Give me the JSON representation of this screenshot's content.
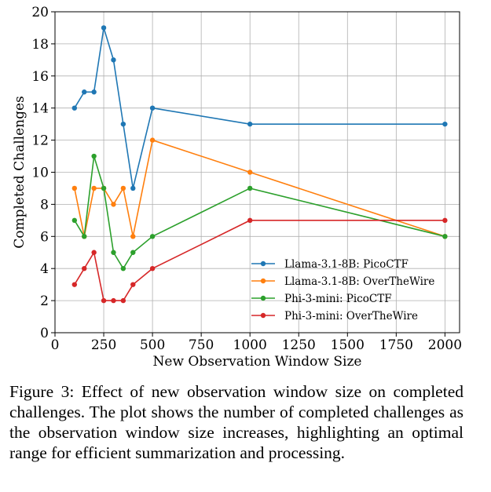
{
  "chart_data": {
    "type": "line",
    "title": "",
    "xlabel": "New Observation Window Size",
    "ylabel": "Completed Challenges",
    "xlim": [
      0,
      2075
    ],
    "ylim": [
      0,
      20
    ],
    "xticks": [
      0,
      250,
      500,
      750,
      1000,
      1250,
      1500,
      1750,
      2000
    ],
    "yticks": [
      0,
      2,
      4,
      6,
      8,
      10,
      12,
      14,
      16,
      18,
      20
    ],
    "grid": true,
    "legend_position": "lower-right",
    "x": [
      100,
      150,
      200,
      250,
      300,
      350,
      400,
      500,
      1000,
      2000
    ],
    "series": [
      {
        "name": "Llama-3.1-8B: PicoCTF",
        "color": "#1f77b4",
        "values": [
          14,
          15,
          15,
          19,
          17,
          13,
          9,
          14,
          13,
          13
        ]
      },
      {
        "name": "Llama-3.1-8B: OverTheWire",
        "color": "#ff7f0e",
        "values": [
          9,
          6,
          9,
          9,
          8,
          9,
          6,
          12,
          10,
          6
        ]
      },
      {
        "name": "Phi-3-mini: PicoCTF",
        "color": "#2ca02c",
        "values": [
          7,
          6,
          11,
          9,
          5,
          4,
          5,
          6,
          9,
          6
        ]
      },
      {
        "name": "Phi-3-mini: OverTheWire",
        "color": "#d62728",
        "values": [
          3,
          4,
          5,
          2,
          2,
          2,
          3,
          4,
          7,
          7
        ]
      }
    ]
  },
  "caption": "Figure 3: Effect of new observation window size on completed challenges. The plot shows the number of completed challenges as the observation window size increases, highlighting an optimal range for efficient summarization and processing."
}
